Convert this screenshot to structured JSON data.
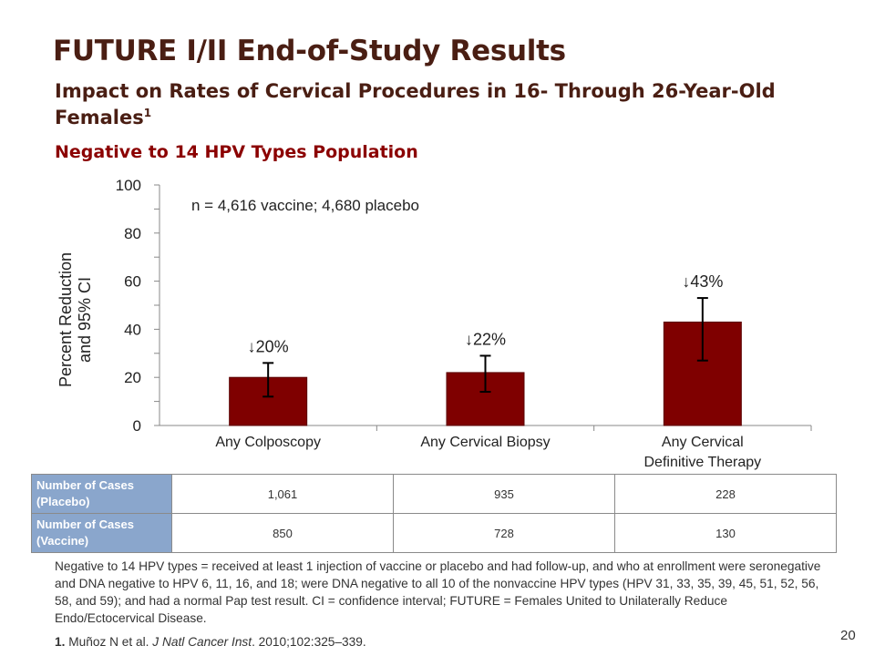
{
  "slide": {
    "title": "FUTURE I/II End-of-Study Results",
    "subtitle": "Impact on Rates of Cervical Procedures in 16- Through 26-Year-Old Females",
    "subtitle_ref": "1",
    "population": "Negative to 14 HPV Types Population",
    "page_number": "20"
  },
  "chart_data": {
    "type": "bar",
    "categories": [
      "Any Colposcopy",
      "Any Cervical Biopsy",
      "Any Cervical Definitive Therapy"
    ],
    "values": [
      20,
      22,
      43
    ],
    "ci_low": [
      12,
      14,
      27
    ],
    "ci_high": [
      26,
      29,
      53
    ],
    "data_labels": [
      "↓20%",
      "↓22%",
      "↓43%"
    ],
    "ylabel": "Percent Reduction and 95% CI",
    "ylim": [
      0,
      100
    ],
    "yticks": [
      0,
      20,
      40,
      60,
      80,
      100
    ],
    "annotation": "n = 4,616 vaccine; 4,680 placebo",
    "bar_color": "#7f0000",
    "grid": false
  },
  "table": {
    "rows": [
      {
        "label": "Number of Cases (Placebo)",
        "values": [
          "1,061",
          "935",
          "228"
        ]
      },
      {
        "label": "Number of Cases (Vaccine)",
        "values": [
          "850",
          "728",
          "130"
        ]
      }
    ],
    "header_color": "#8aa6cc"
  },
  "footnote": "Negative to 14 HPV types = received at least 1 injection of vaccine or placebo and had follow-up, and who at enrollment were seronegative and DNA negative to HPV 6, 11, 16, and 18; were DNA negative to all 10 of the  nonvaccine HPV types (HPV 31, 33, 35, 39, 45, 51, 52, 56, 58, and 59); and had a normal Pap test result. CI = confidence interval; FUTURE = Females United to Unilaterally Reduce Endo/Ectocervical Disease.",
  "reference": {
    "number": "1.",
    "authors": "Muñoz N et al.",
    "journal": "J Natl Cancer Inst",
    "citation": ". 2010;102:325–339."
  }
}
